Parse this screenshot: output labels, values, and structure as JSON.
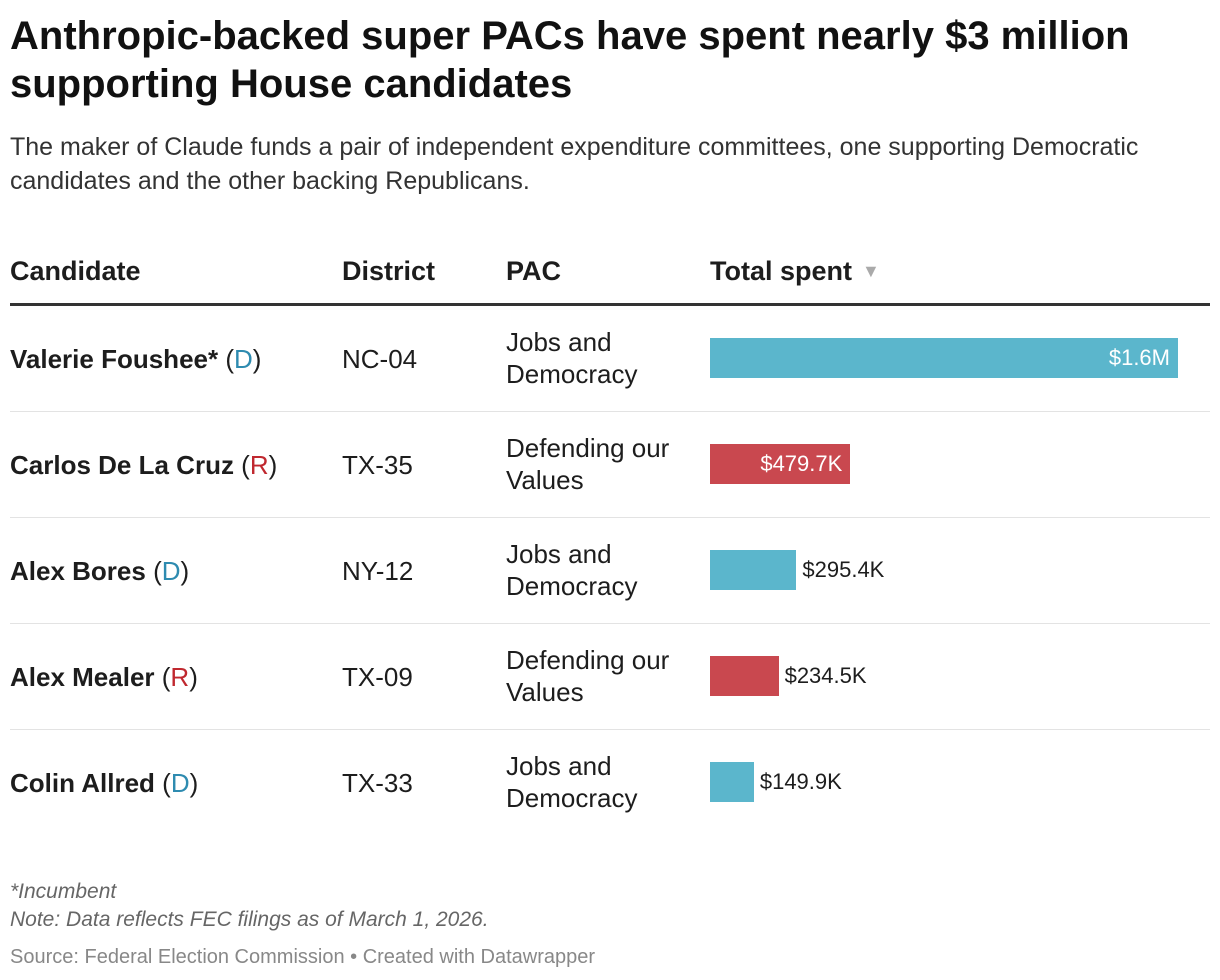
{
  "title": "Anthropic-backed super PACs have spent nearly $3 million supporting House candidates",
  "subtitle": "The maker of Claude funds a pair of independent expenditure committees, one supporting Democratic candidates and the other backing Republicans.",
  "colors": {
    "D": "#5bb6cc",
    "R": "#c9484f",
    "D_text": "#2e8bb0",
    "R_text": "#c0282f"
  },
  "chart_data": {
    "type": "table",
    "columns": [
      "Candidate",
      "District",
      "PAC",
      "Total spent"
    ],
    "sort_indicator": "▼",
    "xlim": [
      0,
      1600000
    ],
    "rows": [
      {
        "candidate": "Valerie Foushee*",
        "party": "D",
        "district": "NC-04",
        "pac": "Jobs and Democracy",
        "value": 1600000,
        "label": "$1.6M"
      },
      {
        "candidate": "Carlos De La Cruz",
        "party": "R",
        "district": "TX-35",
        "pac": "Defending our Values",
        "value": 479700,
        "label": "$479.7K"
      },
      {
        "candidate": "Alex Bores",
        "party": "D",
        "district": "NY-12",
        "pac": "Jobs and Democracy",
        "value": 295400,
        "label": "$295.4K"
      },
      {
        "candidate": "Alex Mealer",
        "party": "R",
        "district": "TX-09",
        "pac": "Defending our Values",
        "value": 234500,
        "label": "$234.5K"
      },
      {
        "candidate": "Colin Allred",
        "party": "D",
        "district": "TX-33",
        "pac": "Jobs and Democracy",
        "value": 149900,
        "label": "$149.9K"
      }
    ]
  },
  "notes": {
    "incumbent": "*Incumbent",
    "data_note": "Note: Data reflects FEC filings as of March 1, 2026."
  },
  "source": "Source: Federal Election Commission • Created with Datawrapper"
}
